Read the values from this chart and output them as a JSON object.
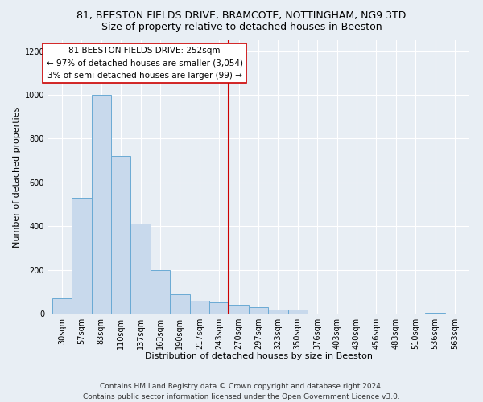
{
  "title": "81, BEESTON FIELDS DRIVE, BRAMCOTE, NOTTINGHAM, NG9 3TD",
  "subtitle": "Size of property relative to detached houses in Beeston",
  "xlabel": "Distribution of detached houses by size in Beeston",
  "ylabel": "Number of detached properties",
  "bar_color": "#c8d9ec",
  "bar_edge_color": "#6aaad4",
  "categories": [
    "30sqm",
    "57sqm",
    "83sqm",
    "110sqm",
    "137sqm",
    "163sqm",
    "190sqm",
    "217sqm",
    "243sqm",
    "270sqm",
    "297sqm",
    "323sqm",
    "350sqm",
    "376sqm",
    "403sqm",
    "430sqm",
    "456sqm",
    "483sqm",
    "510sqm",
    "536sqm",
    "563sqm"
  ],
  "values": [
    70,
    530,
    1000,
    720,
    410,
    200,
    90,
    60,
    50,
    40,
    30,
    18,
    20,
    0,
    0,
    0,
    0,
    0,
    0,
    5,
    0
  ],
  "ylim": [
    0,
    1250
  ],
  "yticks": [
    0,
    200,
    400,
    600,
    800,
    1000,
    1200
  ],
  "property_line_x": 8.5,
  "property_label": "81 BEESTON FIELDS DRIVE: 252sqm",
  "annotation_line1": "← 97% of detached houses are smaller (3,054)",
  "annotation_line2": "3% of semi-detached houses are larger (99) →",
  "annotation_box_color": "#ffffff",
  "annotation_box_edge_color": "#cc0000",
  "vline_color": "#cc0000",
  "footnote1": "Contains HM Land Registry data © Crown copyright and database right 2024.",
  "footnote2": "Contains public sector information licensed under the Open Government Licence v3.0.",
  "background_color": "#e8eef4",
  "plot_bg_color": "#e8eef4",
  "grid_color": "#ffffff",
  "title_fontsize": 9,
  "subtitle_fontsize": 9,
  "axis_label_fontsize": 8,
  "tick_fontsize": 7,
  "annotation_fontsize": 7.5,
  "footnote_fontsize": 6.5
}
